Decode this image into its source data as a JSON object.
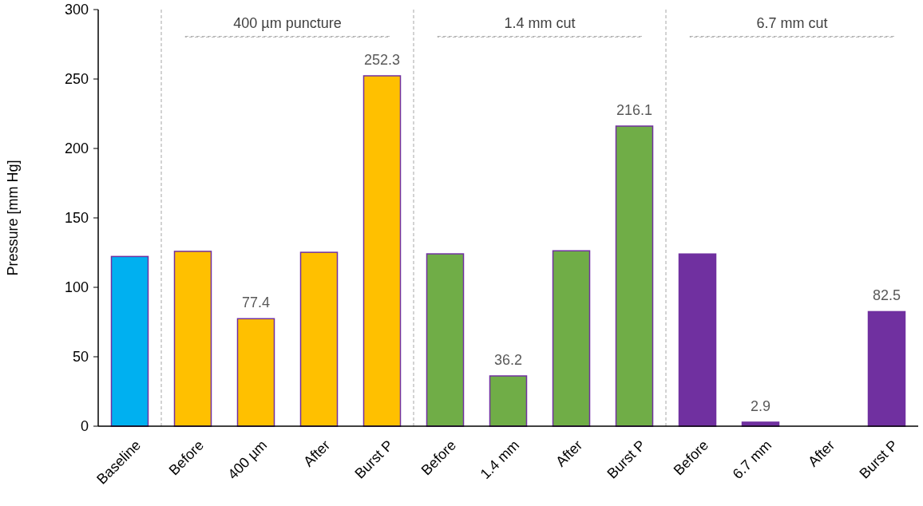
{
  "chart_data": {
    "type": "bar",
    "ylabel": "Pressure [mm Hg]",
    "categories": [
      "Baseline",
      "Before",
      "400 µm",
      "After",
      "Burst P",
      "Before",
      "1.4 mm",
      "After",
      "Burst P",
      "Before",
      "6.7 mm",
      "After",
      "Burst P"
    ],
    "values": [
      122.2,
      125.9,
      77.4,
      125.2,
      252.3,
      124.1,
      36.2,
      126.3,
      216.1,
      124,
      2.9,
      null,
      82.5
    ],
    "colors": [
      "#00b0f0",
      "#ffc000",
      "#ffc000",
      "#ffc000",
      "#ffc000",
      "#70ad47",
      "#70ad47",
      "#70ad47",
      "#70ad47",
      "#7030a0",
      "#7030a0",
      "#7030a0",
      "#7030a0"
    ],
    "value_labels": [
      null,
      null,
      "77.4",
      null,
      "252.3",
      null,
      "36.2",
      null,
      "216.1",
      null,
      "2.9",
      null,
      "82.5"
    ],
    "ylim": [
      0,
      300
    ],
    "yticks": [
      0,
      50,
      100,
      150,
      200,
      250,
      300
    ],
    "grid": false,
    "annotations": [
      "400 µm puncture",
      "1.4 mm cut",
      "6.7 mm cut"
    ]
  }
}
